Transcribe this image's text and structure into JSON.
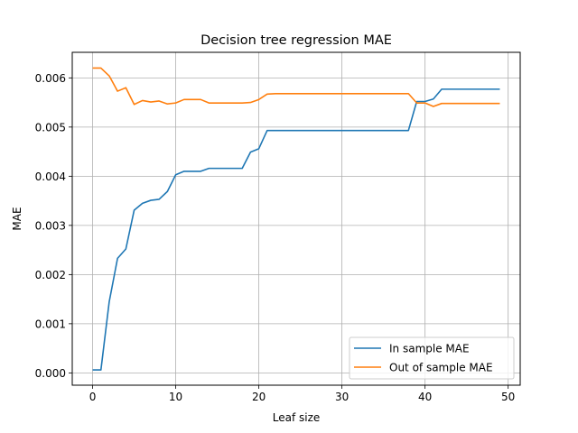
{
  "chart_data": {
    "type": "line",
    "title": "Decision tree regression MAE",
    "xlabel": "Leaf size",
    "ylabel": "MAE",
    "xlim": [
      -2.45,
      51.45
    ],
    "ylim": [
      -0.00025,
      0.00652
    ],
    "x_ticks": [
      0,
      10,
      20,
      30,
      40,
      50
    ],
    "y_ticks": [
      0.0,
      0.001,
      0.002,
      0.003,
      0.004,
      0.005,
      0.006
    ],
    "x_tick_labels": [
      "0",
      "10",
      "20",
      "30",
      "40",
      "50"
    ],
    "y_tick_labels": [
      "0.000",
      "0.001",
      "0.002",
      "0.003",
      "0.004",
      "0.005",
      "0.006"
    ],
    "grid": true,
    "legend_position": "lower-right",
    "x": [
      0,
      1,
      2,
      3,
      4,
      5,
      6,
      7,
      8,
      9,
      10,
      11,
      12,
      13,
      14,
      15,
      16,
      17,
      18,
      19,
      20,
      21,
      22,
      23,
      24,
      25,
      26,
      27,
      28,
      29,
      30,
      31,
      32,
      33,
      34,
      35,
      36,
      37,
      38,
      39,
      40,
      41,
      42,
      43,
      44,
      45,
      46,
      47,
      48,
      49
    ],
    "series": [
      {
        "name": "In sample MAE",
        "color": "#1f77b4",
        "values": [
          6e-05,
          6e-05,
          0.00145,
          0.00233,
          0.00252,
          0.00331,
          0.00345,
          0.00351,
          0.00353,
          0.00369,
          0.00403,
          0.0041,
          0.0041,
          0.0041,
          0.00416,
          0.00416,
          0.00416,
          0.00416,
          0.00416,
          0.00449,
          0.00456,
          0.00493,
          0.00493,
          0.00493,
          0.00493,
          0.00493,
          0.00493,
          0.00493,
          0.00493,
          0.00493,
          0.00493,
          0.00493,
          0.00493,
          0.00493,
          0.00493,
          0.00493,
          0.00493,
          0.00493,
          0.00493,
          0.00552,
          0.00552,
          0.00557,
          0.00577,
          0.00577,
          0.00577,
          0.00577,
          0.00577,
          0.00577,
          0.00577,
          0.00577
        ]
      },
      {
        "name": "Out of sample MAE",
        "color": "#ff7f0e",
        "values": [
          0.0062,
          0.0062,
          0.00604,
          0.00573,
          0.0058,
          0.00546,
          0.00554,
          0.00551,
          0.00553,
          0.00547,
          0.00549,
          0.00556,
          0.00556,
          0.00556,
          0.00549,
          0.00549,
          0.00549,
          0.00549,
          0.00549,
          0.0055,
          0.00556,
          0.00567,
          0.00568,
          0.00568,
          0.00568,
          0.00568,
          0.00568,
          0.00568,
          0.00568,
          0.00568,
          0.00568,
          0.00568,
          0.00568,
          0.00568,
          0.00568,
          0.00568,
          0.00568,
          0.00568,
          0.00568,
          0.00549,
          0.00549,
          0.00542,
          0.00548,
          0.00548,
          0.00548,
          0.00548,
          0.00548,
          0.00548,
          0.00548,
          0.00548
        ]
      }
    ]
  }
}
